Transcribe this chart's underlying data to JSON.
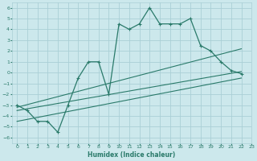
{
  "xlabel": "Humidex (Indice chaleur)",
  "bg_color": "#cce8ec",
  "grid_color": "#aacfd6",
  "line_color": "#2a7a6a",
  "xlim": [
    -0.5,
    23
  ],
  "ylim": [
    -6.5,
    6.5
  ],
  "xticks": [
    0,
    1,
    2,
    3,
    4,
    5,
    6,
    7,
    8,
    9,
    10,
    11,
    12,
    13,
    14,
    15,
    16,
    17,
    18,
    19,
    20,
    21,
    22,
    23
  ],
  "yticks": [
    -6,
    -5,
    -4,
    -3,
    -2,
    -1,
    0,
    1,
    2,
    3,
    4,
    5,
    6
  ],
  "line1_x": [
    0,
    1,
    2,
    3,
    4,
    5,
    6,
    7,
    8,
    9,
    10,
    11,
    12,
    13,
    14,
    15,
    16,
    17,
    18,
    19,
    20,
    21,
    22
  ],
  "line1_y": [
    -3,
    -3.5,
    -4.5,
    -4.5,
    -5.5,
    -3,
    -0.5,
    1,
    1,
    -2,
    4.5,
    4,
    4.5,
    6,
    4.5,
    4.5,
    4.5,
    5,
    2.5,
    2,
    1,
    0.2,
    -0.1
  ],
  "line2_x": [
    0,
    22
  ],
  "line2_y": [
    -3.5,
    0.1
  ],
  "line3_x": [
    0,
    22
  ],
  "line3_y": [
    -4.5,
    -0.5
  ],
  "line4_x": [
    0,
    22
  ],
  "line4_y": [
    -3.2,
    2.2
  ]
}
